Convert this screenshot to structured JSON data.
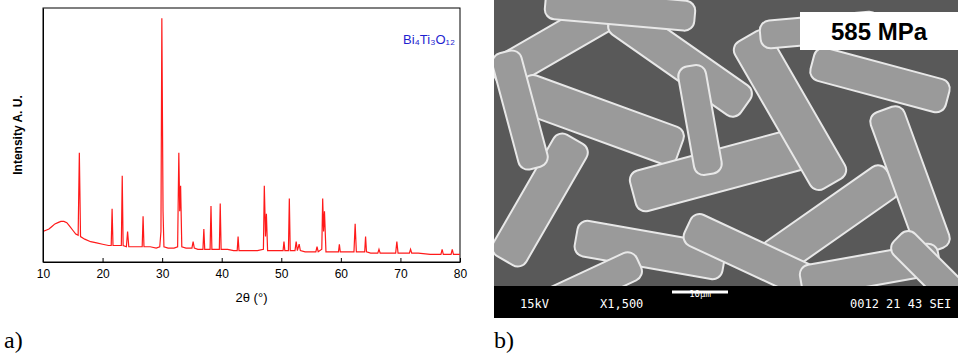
{
  "chart_data": {
    "type": "line",
    "annotations": [
      {
        "text": "Bi₄Ti₃O₁₂",
        "color": "#1f1fd0"
      }
    ],
    "x_label": "2θ (°)",
    "y_label": "Intensity A. U.",
    "color": "#ff1a1a",
    "tick_labels": "x",
    "xlim": [
      10,
      80
    ],
    "xticks": [
      10,
      20,
      30,
      40,
      50,
      60,
      70,
      80
    ],
    "ylim": [
      0,
      100
    ],
    "x": [
      10.0,
      10.5,
      11.0,
      11.5,
      12.0,
      12.5,
      13.0,
      13.5,
      14.0,
      14.5,
      15.0,
      15.5,
      15.9,
      16.1,
      16.3,
      17.0,
      18.0,
      19.0,
      20.0,
      21.0,
      21.45,
      21.6,
      21.75,
      22.5,
      23.15,
      23.3,
      23.45,
      24.0,
      24.2,
      24.4,
      25.0,
      26.0,
      26.65,
      26.8,
      26.95,
      28.0,
      29.0,
      29.6,
      29.8,
      29.95,
      30.15,
      30.3,
      31.0,
      32.0,
      32.6,
      32.8,
      32.95,
      33.1,
      33.3,
      34.0,
      35.0,
      35.2,
      35.4,
      36.0,
      36.85,
      37.0,
      37.15,
      37.6,
      38.05,
      38.2,
      38.35,
      39.0,
      39.6,
      39.75,
      39.9,
      41.0,
      42.0,
      42.6,
      42.75,
      42.9,
      44.0,
      45.0,
      46.0,
      47.0,
      47.15,
      47.35,
      47.5,
      47.7,
      48.5,
      49.5,
      50.3,
      50.45,
      50.6,
      51.2,
      51.35,
      51.5,
      52.3,
      52.5,
      52.7,
      53.0,
      53.2,
      54.0,
      55.0,
      55.8,
      56.0,
      56.2,
      56.8,
      56.95,
      57.1,
      57.25,
      57.5,
      58.0,
      59.0,
      59.6,
      59.75,
      59.9,
      61.0,
      62.2,
      62.4,
      62.6,
      63.0,
      64.0,
      64.15,
      64.3,
      65.0,
      66.2,
      66.4,
      66.6,
      68.0,
      69.2,
      69.4,
      69.6,
      70.0,
      71.5,
      71.7,
      71.9,
      73.0,
      75.0,
      76.8,
      77.0,
      77.2,
      78.0,
      78.5,
      78.7,
      78.9,
      79.5,
      80.0
    ],
    "values": [
      12,
      12.5,
      13,
      14,
      15,
      15.5,
      16,
      16,
      15.5,
      14,
      12.5,
      11,
      10.5,
      43,
      10,
      9,
      8,
      7.5,
      7,
      6.5,
      6.5,
      21,
      6.5,
      6.5,
      6.5,
      34,
      6.5,
      6,
      12,
      6,
      6,
      6,
      6,
      18,
      6,
      6,
      5.5,
      6,
      12,
      96,
      20,
      6,
      5.5,
      5.5,
      6,
      43,
      20,
      30,
      6,
      5.5,
      5.5,
      8,
      5.5,
      5,
      5,
      13,
      5,
      5,
      5,
      22,
      5,
      5,
      5,
      23,
      5,
      5,
      4.5,
      4.5,
      10,
      4.5,
      4.5,
      4.5,
      4.5,
      5,
      30,
      10,
      19,
      4.5,
      4.5,
      4.5,
      4.5,
      8,
      4.5,
      4.5,
      25,
      4.5,
      4.5,
      8,
      4.5,
      7,
      4.5,
      4,
      4,
      4,
      6,
      4,
      5,
      25,
      12,
      20,
      4,
      4,
      4,
      4,
      7,
      4,
      4,
      4,
      15,
      4,
      4,
      4,
      10,
      4,
      3.5,
      3.5,
      5,
      3.5,
      3.5,
      3.5,
      8,
      3.5,
      3.5,
      3.5,
      5,
      3.5,
      3.5,
      3,
      3,
      5,
      3,
      3,
      3,
      5,
      3,
      3,
      3
    ]
  },
  "image": {
    "pressure": "585 MPa",
    "info_bar": [
      "15kV",
      "X1,500",
      "10μm",
      "0012 21 43 SEI"
    ]
  },
  "panel_labels": [
    "a)",
    "b)"
  ]
}
